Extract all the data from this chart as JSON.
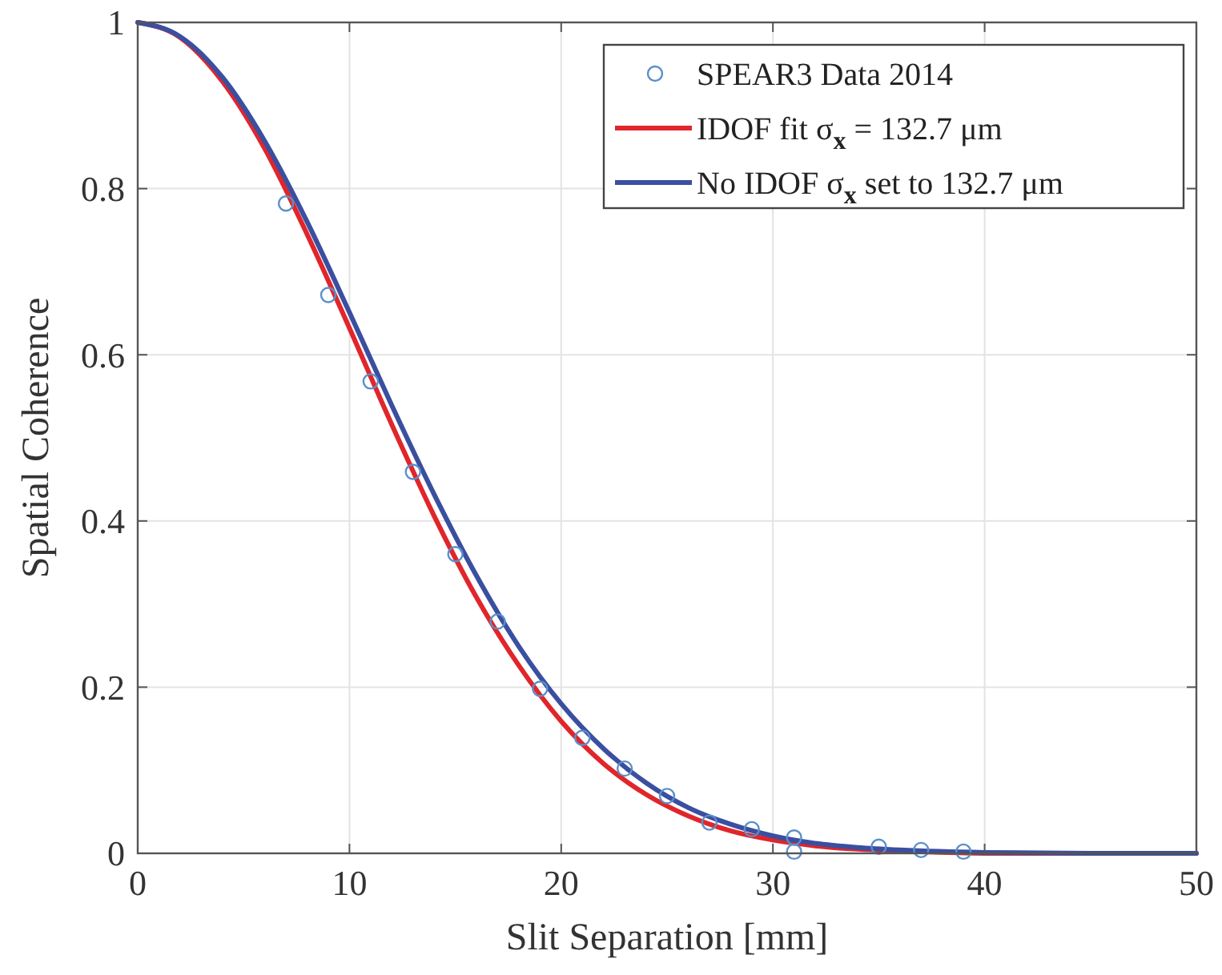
{
  "chart_data": {
    "type": "line",
    "xlabel": "Slit Separation [mm]",
    "ylabel": "Spatial Coherence",
    "xlim": [
      0,
      50
    ],
    "xticks": [
      0,
      10,
      20,
      30,
      40,
      50
    ],
    "ylim": [
      0,
      1
    ],
    "yticks": [
      0,
      0.2,
      0.4,
      0.6,
      0.8,
      1
    ],
    "grid": true,
    "legend": "top right",
    "series": [
      {
        "type": "scatter",
        "name": "SPEAR3 Data 2014",
        "color": "#5b8fc9",
        "marker": "circle",
        "x": [
          7,
          9,
          11,
          13,
          15,
          17,
          19,
          21,
          23,
          25,
          27,
          29,
          31,
          31,
          35,
          37,
          39
        ],
        "values": [
          0.782,
          0.672,
          0.568,
          0.459,
          0.36,
          0.279,
          0.198,
          0.139,
          0.102,
          0.069,
          0.037,
          0.029,
          0.019,
          0.002,
          0.008,
          0.004,
          0.002
        ]
      },
      {
        "name": "IDOF fit σ$_{x}$ = 132.7 μm",
        "color": "#e0262b",
        "x": [
          0,
          2,
          4,
          6,
          8,
          10,
          12,
          14,
          16,
          18,
          20,
          22,
          24,
          26,
          28,
          30,
          32,
          34,
          36,
          40,
          45,
          50
        ],
        "values": [
          1,
          0.982,
          0.929,
          0.848,
          0.745,
          0.632,
          0.516,
          0.406,
          0.308,
          0.226,
          0.159,
          0.108,
          0.071,
          0.045,
          0.027,
          0.016,
          0.009,
          0.005,
          0.003,
          0,
          0,
          0
        ]
      },
      {
        "name": "No IDOF σ$_{x}$ set to 132.7 μm",
        "color": "#3a4fa0",
        "x": [
          0,
          2,
          4,
          6,
          8,
          10,
          12,
          14,
          16,
          18,
          20,
          22,
          24,
          26,
          28,
          30,
          32,
          34,
          36,
          40,
          45,
          50
        ],
        "values": [
          1,
          0.983,
          0.934,
          0.857,
          0.76,
          0.651,
          0.539,
          0.432,
          0.334,
          0.249,
          0.18,
          0.126,
          0.085,
          0.055,
          0.035,
          0.021,
          0.012,
          0.007,
          0.004,
          0.001,
          0,
          0
        ]
      }
    ]
  }
}
